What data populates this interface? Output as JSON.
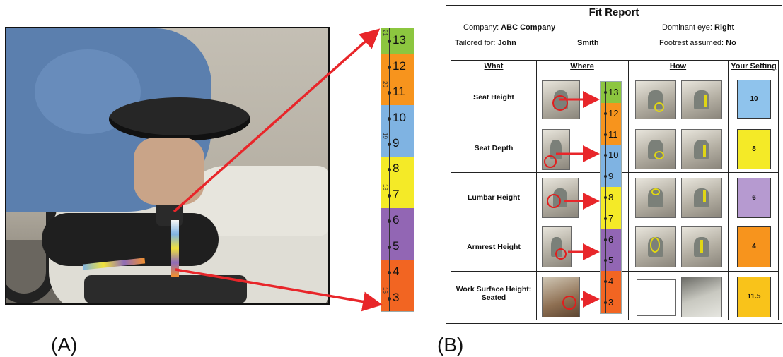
{
  "panel_labels": {
    "a": "(A)",
    "b": "(B)"
  },
  "ruler": {
    "segments": [
      {
        "value": "13",
        "color": "#8cc63f",
        "cm": "21"
      },
      {
        "value": "12",
        "color": "#f7941d",
        "cm": ""
      },
      {
        "value": "11",
        "color": "#f7941d",
        "cm": "20"
      },
      {
        "value": "10",
        "color": "#7fb3e2",
        "cm": ""
      },
      {
        "value": "9",
        "color": "#7fb3e2",
        "cm": "19"
      },
      {
        "value": "8",
        "color": "#f4ea27",
        "cm": ""
      },
      {
        "value": "7",
        "color": "#f4ea27",
        "cm": "18"
      },
      {
        "value": "6",
        "color": "#9266b4",
        "cm": ""
      },
      {
        "value": "5",
        "color": "#9266b4",
        "cm": ""
      },
      {
        "value": "4",
        "color": "#f26522",
        "cm": ""
      },
      {
        "value": "3",
        "color": "#f26522",
        "cm": "16"
      }
    ]
  },
  "report": {
    "title": "Fit Report",
    "company_label": "Company:",
    "company_value": "ABC Company",
    "dominant_eye_label": "Dominant eye:",
    "dominant_eye_value": "Right",
    "tailored_label": "Tailored for:",
    "tailored_first": "John",
    "tailored_last": "Smith",
    "footrest_label": "Footrest assumed:",
    "footrest_value": "No",
    "columns": {
      "what": "What",
      "where": "Where",
      "how": "How",
      "setting": "Your Setting"
    },
    "rows": [
      {
        "what": "Seat Height",
        "setting": "10",
        "color": "#8fc3ec"
      },
      {
        "what": "Seat Depth",
        "setting": "8",
        "color": "#f4ea27"
      },
      {
        "what": "Lumbar Height",
        "setting": "6",
        "color": "#b69ad0"
      },
      {
        "what": "Armrest Height",
        "setting": "4",
        "color": "#f7941d"
      },
      {
        "what": "Work Surface Height:",
        "what2": "Seated",
        "setting": "11.5",
        "color": "#f9c31a"
      }
    ]
  }
}
